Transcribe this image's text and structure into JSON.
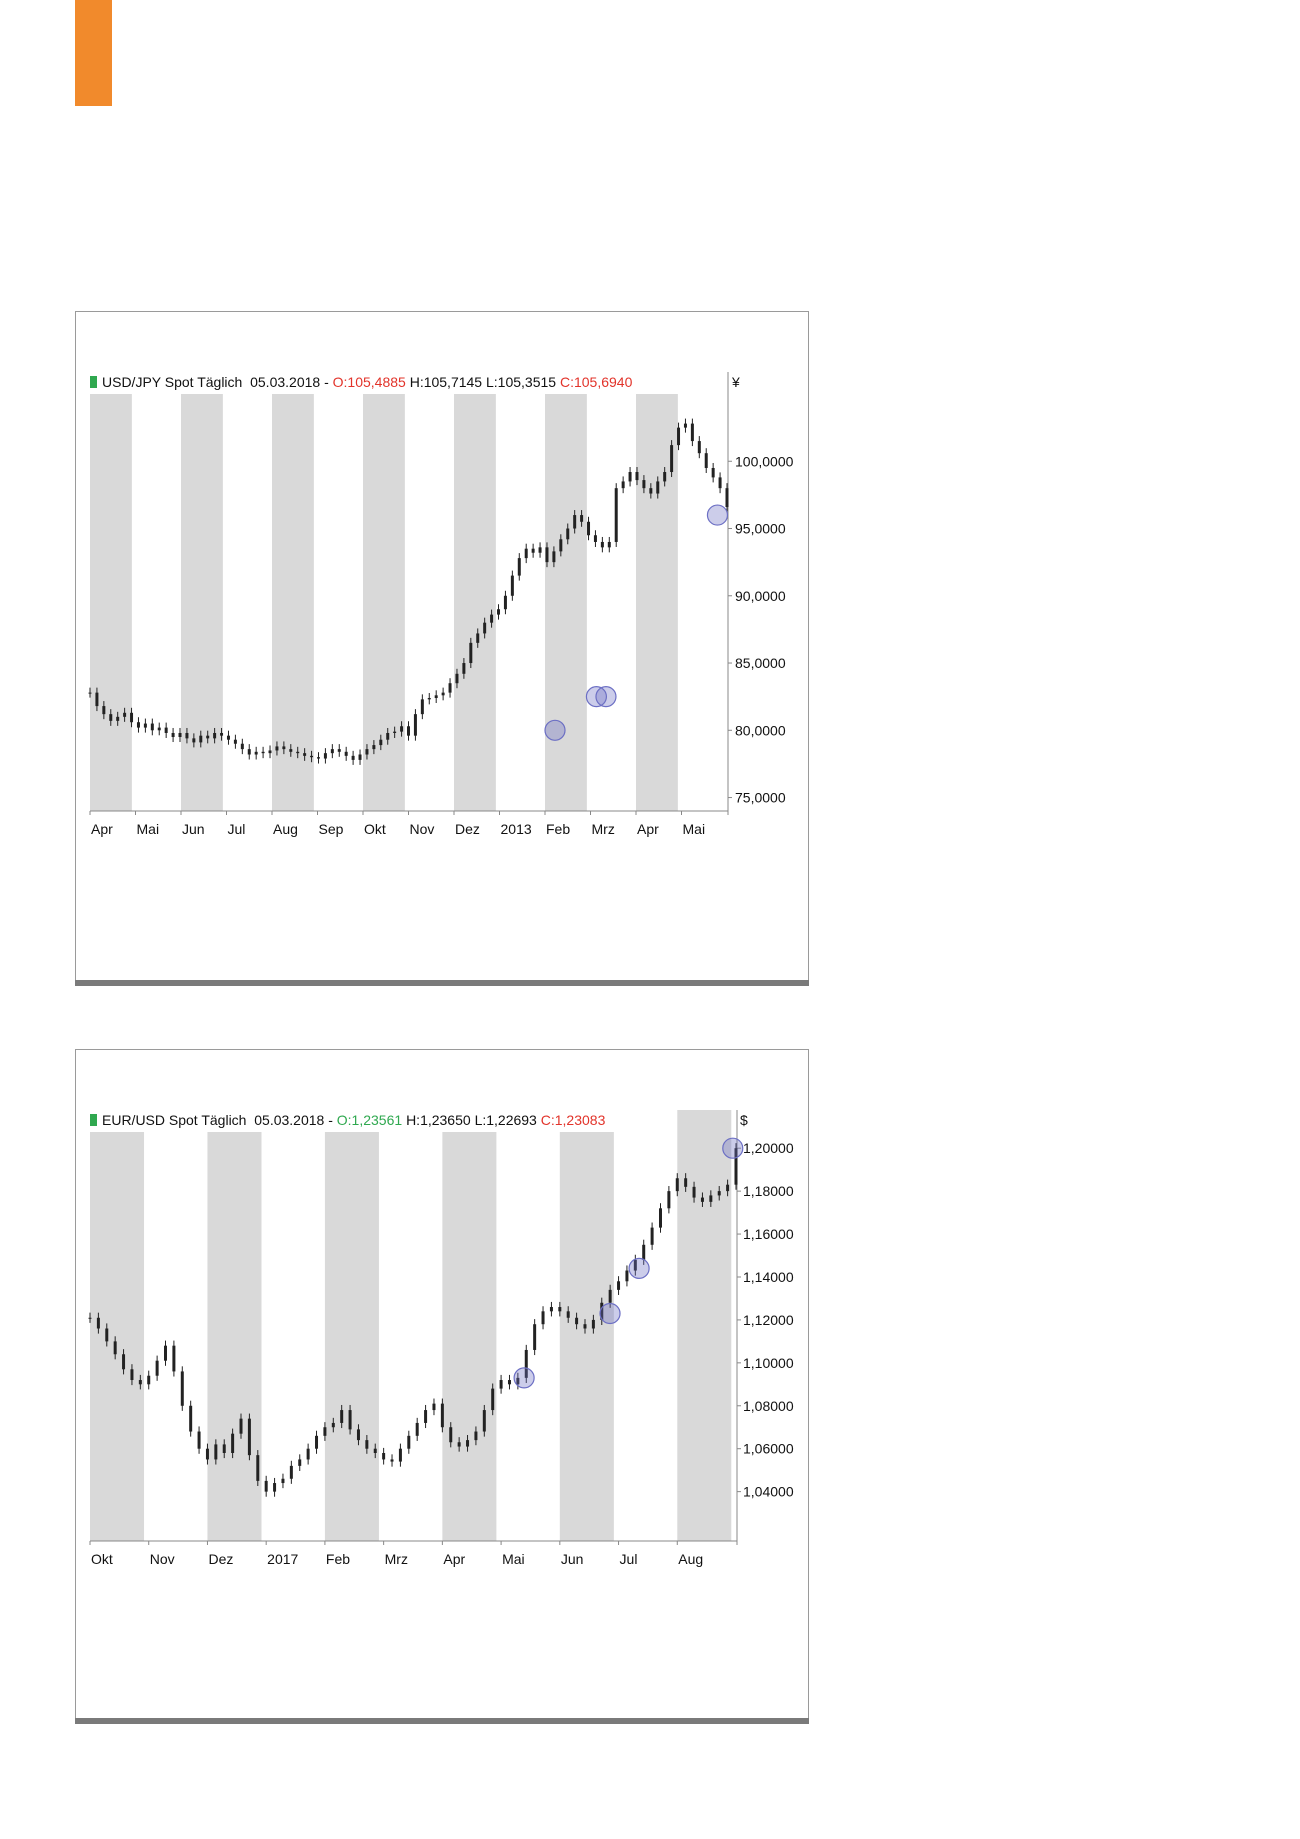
{
  "colors": {
    "accent_orange": "#f18a2c",
    "shade_band": "#d9d9d9",
    "candle": "#222222",
    "red_value": "#e2332a",
    "green_value": "#2fa84f",
    "marker": "#6c6fc4"
  },
  "chart_data": [
    {
      "type": "candlestick",
      "title": "USD/JPY Spot Täglich",
      "date": "05.03.2018",
      "ohlc": {
        "o": "O:105,4885",
        "h": "H:105,7145",
        "l": "L:105,3515",
        "c": "C:105,6940"
      },
      "o_color": "red",
      "c_color": "red",
      "unit": "¥",
      "ylim": [
        74,
        105
      ],
      "yticks": [
        "100,0000",
        "95,0000",
        "90,0000",
        "85,0000",
        "80,0000",
        "75,0000"
      ],
      "ytick_values": [
        100,
        95,
        90,
        85,
        80,
        75
      ],
      "months": [
        "Apr",
        "Mai",
        "Jun",
        "Jul",
        "Aug",
        "Sep",
        "Okt",
        "Nov",
        "Dez",
        "2013",
        "Feb",
        "Mrz",
        "Apr",
        "Mai"
      ],
      "shaded_months": [
        0,
        2,
        4,
        6,
        8,
        10,
        12
      ],
      "series": [
        {
          "values": [
            82.8,
            81.8,
            81.2,
            80.7,
            81.0,
            81.3,
            80.6,
            80.2,
            80.5,
            80.0,
            80.2,
            79.8,
            79.5,
            79.8,
            79.4,
            79.1,
            79.6,
            79.4,
            79.8,
            79.6,
            79.3,
            79.0,
            78.6,
            78.2,
            78.4,
            78.3,
            78.5,
            78.8,
            78.6,
            78.4,
            78.3,
            78.1,
            78.0,
            77.9,
            78.3,
            78.6,
            78.4,
            78.1,
            77.8,
            78.2,
            78.6,
            78.9,
            79.3,
            79.8,
            79.9,
            80.3,
            79.6,
            81.2,
            82.3,
            82.4,
            82.6,
            82.8,
            83.5,
            84.2,
            85.0,
            86.5,
            87.2,
            88.0,
            88.6,
            89.0,
            90.0,
            91.5,
            92.8,
            93.5,
            93.2,
            93.6,
            92.5,
            93.3,
            94.2,
            95.0,
            96.0,
            95.5,
            94.5,
            94.0,
            93.6,
            94.0,
            98.0,
            98.5,
            99.2,
            98.6,
            98.0,
            97.6,
            98.5,
            99.2,
            101.2,
            102.5,
            102.8,
            101.5,
            100.6,
            99.5,
            98.8,
            98.0,
            96.6
          ],
          "markers": [
            0.73,
            0.795,
            0.81,
            0.985
          ],
          "marker_values": [
            80.0,
            82.5,
            82.5,
            96.0
          ]
        }
      ]
    },
    {
      "type": "candlestick",
      "title": "EUR/USD Spot Täglich",
      "date": "05.03.2018",
      "ohlc": {
        "o": "O:1,23561",
        "h": "H:1,23650",
        "l": "L:1,22693",
        "c": "C:1,23083"
      },
      "o_color": "green",
      "c_color": "red",
      "unit": "$",
      "ylim": [
        1.017,
        1.215
      ],
      "yticks": [
        "1,20000",
        "1,18000",
        "1,16000",
        "1,14000",
        "1,12000",
        "1,10000",
        "1,08000",
        "1,06000",
        "1,04000"
      ],
      "ytick_values": [
        1.2,
        1.18,
        1.16,
        1.14,
        1.12,
        1.1,
        1.08,
        1.06,
        1.04
      ],
      "months": [
        "Okt",
        "Nov",
        "Dez",
        "2017",
        "Feb",
        "Mrz",
        "Apr",
        "Mai",
        "Jun",
        "Jul",
        "Aug"
      ],
      "shaded_months": [
        0,
        2,
        4,
        6,
        8,
        10
      ],
      "series": [
        {
          "values": [
            1.121,
            1.116,
            1.11,
            1.104,
            1.097,
            1.092,
            1.09,
            1.094,
            1.101,
            1.108,
            1.096,
            1.08,
            1.068,
            1.06,
            1.055,
            1.062,
            1.058,
            1.067,
            1.074,
            1.057,
            1.045,
            1.04,
            1.044,
            1.046,
            1.052,
            1.055,
            1.06,
            1.066,
            1.07,
            1.072,
            1.078,
            1.069,
            1.064,
            1.06,
            1.058,
            1.055,
            1.054,
            1.06,
            1.066,
            1.072,
            1.078,
            1.081,
            1.07,
            1.063,
            1.061,
            1.064,
            1.068,
            1.078,
            1.088,
            1.092,
            1.09,
            1.093,
            1.106,
            1.118,
            1.124,
            1.126,
            1.124,
            1.121,
            1.118,
            1.116,
            1.12,
            1.128,
            1.134,
            1.138,
            1.143,
            1.148,
            1.155,
            1.163,
            1.172,
            1.18,
            1.186,
            1.182,
            1.177,
            1.175,
            1.178,
            1.18,
            1.183,
            1.2
          ],
          "markers": [
            0.672,
            0.805,
            0.85,
            0.995
          ],
          "marker_values": [
            1.093,
            1.123,
            1.144,
            1.2
          ]
        }
      ]
    }
  ]
}
